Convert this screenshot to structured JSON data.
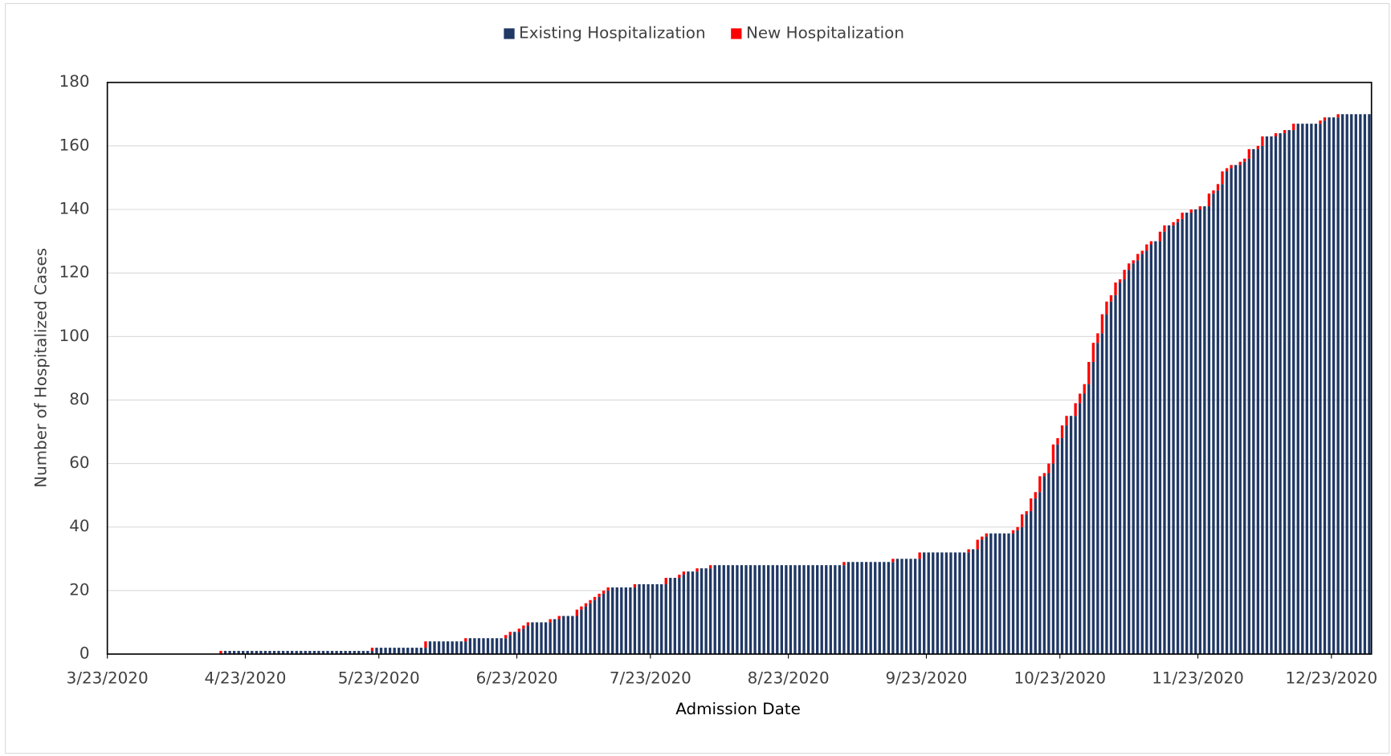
{
  "chart_data": {
    "type": "stacked_bar",
    "xlabel": "Admission Date",
    "ylabel": "Number of Hospitalized Cases",
    "legend": "top",
    "grid": true,
    "ylim": [
      0,
      180
    ],
    "yticks": [
      0,
      20,
      40,
      60,
      80,
      100,
      120,
      140,
      160,
      180
    ],
    "xticks": [
      "3/23/2020",
      "4/23/2020",
      "5/23/2020",
      "6/23/2020",
      "7/23/2020",
      "8/23/2020",
      "9/23/2020",
      "10/23/2020",
      "11/23/2020",
      "12/23/2020"
    ],
    "categories": [
      "3/23/2020",
      "3/24/2020",
      "3/25/2020",
      "3/26/2020",
      "3/27/2020",
      "3/28/2020",
      "3/29/2020",
      "3/30/2020",
      "3/31/2020",
      "4/1/2020",
      "4/2/2020",
      "4/3/2020",
      "4/4/2020",
      "4/5/2020",
      "4/6/2020",
      "4/7/2020",
      "4/8/2020",
      "4/9/2020",
      "4/10/2020",
      "4/11/2020",
      "4/12/2020",
      "4/13/2020",
      "4/14/2020",
      "4/15/2020",
      "4/16/2020",
      "4/17/2020",
      "4/18/2020",
      "4/19/2020",
      "4/20/2020",
      "4/21/2020",
      "4/22/2020",
      "4/23/2020",
      "4/24/2020",
      "4/25/2020",
      "4/26/2020",
      "4/27/2020",
      "4/28/2020",
      "4/29/2020",
      "4/30/2020",
      "5/1/2020",
      "5/2/2020",
      "5/3/2020",
      "5/4/2020",
      "5/5/2020",
      "5/6/2020",
      "5/7/2020",
      "5/8/2020",
      "5/9/2020",
      "5/10/2020",
      "5/11/2020",
      "5/12/2020",
      "5/13/2020",
      "5/14/2020",
      "5/15/2020",
      "5/16/2020",
      "5/17/2020",
      "5/18/2020",
      "5/19/2020",
      "5/20/2020",
      "5/21/2020",
      "5/22/2020",
      "5/23/2020",
      "5/24/2020",
      "5/25/2020",
      "5/26/2020",
      "5/27/2020",
      "5/28/2020",
      "5/29/2020",
      "5/30/2020",
      "5/31/2020",
      "6/1/2020",
      "6/2/2020",
      "6/3/2020",
      "6/4/2020",
      "6/5/2020",
      "6/6/2020",
      "6/7/2020",
      "6/8/2020",
      "6/9/2020",
      "6/10/2020",
      "6/11/2020",
      "6/12/2020",
      "6/13/2020",
      "6/14/2020",
      "6/15/2020",
      "6/16/2020",
      "6/17/2020",
      "6/18/2020",
      "6/19/2020",
      "6/20/2020",
      "6/21/2020",
      "6/22/2020",
      "6/23/2020",
      "6/24/2020",
      "6/25/2020",
      "6/26/2020",
      "6/27/2020",
      "6/28/2020",
      "6/29/2020",
      "6/30/2020",
      "7/1/2020",
      "7/2/2020",
      "7/3/2020",
      "7/4/2020",
      "7/5/2020",
      "7/6/2020",
      "7/7/2020",
      "7/8/2020",
      "7/9/2020",
      "7/10/2020",
      "7/11/2020",
      "7/12/2020",
      "7/13/2020",
      "7/14/2020",
      "7/15/2020",
      "7/16/2020",
      "7/17/2020",
      "7/18/2020",
      "7/19/2020",
      "7/20/2020",
      "7/21/2020",
      "7/22/2020",
      "7/23/2020",
      "7/24/2020",
      "7/25/2020",
      "7/26/2020",
      "7/27/2020",
      "7/28/2020",
      "7/29/2020",
      "7/30/2020",
      "7/31/2020",
      "8/1/2020",
      "8/2/2020",
      "8/3/2020",
      "8/4/2020",
      "8/5/2020",
      "8/6/2020",
      "8/7/2020",
      "8/8/2020",
      "8/9/2020",
      "8/10/2020",
      "8/11/2020",
      "8/12/2020",
      "8/13/2020",
      "8/14/2020",
      "8/15/2020",
      "8/16/2020",
      "8/17/2020",
      "8/18/2020",
      "8/19/2020",
      "8/20/2020",
      "8/21/2020",
      "8/22/2020",
      "8/23/2020",
      "8/24/2020",
      "8/25/2020",
      "8/26/2020",
      "8/27/2020",
      "8/28/2020",
      "8/29/2020",
      "8/30/2020",
      "8/31/2020",
      "9/1/2020",
      "9/2/2020",
      "9/3/2020",
      "9/4/2020",
      "9/5/2020",
      "9/6/2020",
      "9/7/2020",
      "9/8/2020",
      "9/9/2020",
      "9/10/2020",
      "9/11/2020",
      "9/12/2020",
      "9/13/2020",
      "9/14/2020",
      "9/15/2020",
      "9/16/2020",
      "9/17/2020",
      "9/18/2020",
      "9/19/2020",
      "9/20/2020",
      "9/21/2020",
      "9/22/2020",
      "9/23/2020",
      "9/24/2020",
      "9/25/2020",
      "9/26/2020",
      "9/27/2020",
      "9/28/2020",
      "9/29/2020",
      "9/30/2020",
      "10/1/2020",
      "10/2/2020",
      "10/3/2020",
      "10/4/2020",
      "10/5/2020",
      "10/6/2020",
      "10/7/2020",
      "10/8/2020",
      "10/9/2020",
      "10/10/2020",
      "10/11/2020",
      "10/12/2020",
      "10/13/2020",
      "10/14/2020",
      "10/15/2020",
      "10/16/2020",
      "10/17/2020",
      "10/18/2020",
      "10/19/2020",
      "10/20/2020",
      "10/21/2020",
      "10/22/2020",
      "10/23/2020",
      "10/24/2020",
      "10/25/2020",
      "10/26/2020",
      "10/27/2020",
      "10/28/2020",
      "10/29/2020",
      "10/30/2020",
      "10/31/2020",
      "11/1/2020",
      "11/2/2020",
      "11/3/2020",
      "11/4/2020",
      "11/5/2020",
      "11/6/2020",
      "11/7/2020",
      "11/8/2020",
      "11/9/2020",
      "11/10/2020",
      "11/11/2020",
      "11/12/2020",
      "11/13/2020",
      "11/14/2020",
      "11/15/2020",
      "11/16/2020",
      "11/17/2020",
      "11/18/2020",
      "11/19/2020",
      "11/20/2020",
      "11/21/2020",
      "11/22/2020",
      "11/23/2020",
      "11/24/2020",
      "11/25/2020",
      "11/26/2020",
      "11/27/2020",
      "11/28/2020",
      "11/29/2020",
      "11/30/2020",
      "12/1/2020",
      "12/2/2020",
      "12/3/2020",
      "12/4/2020",
      "12/5/2020",
      "12/6/2020",
      "12/7/2020",
      "12/8/2020",
      "12/9/2020",
      "12/10/2020",
      "12/11/2020",
      "12/12/2020",
      "12/13/2020",
      "12/14/2020",
      "12/15/2020",
      "12/16/2020",
      "12/17/2020",
      "12/18/2020",
      "12/19/2020",
      "12/20/2020",
      "12/21/2020",
      "12/22/2020",
      "12/23/2020",
      "12/24/2020",
      "12/25/2020",
      "12/26/2020",
      "12/27/2020",
      "12/28/2020",
      "12/29/2020",
      "12/30/2020",
      "12/31/2020"
    ],
    "series": [
      {
        "name": "Existing Hospitalization",
        "color": "#203864",
        "values": [
          0,
          0,
          0,
          0,
          0,
          0,
          0,
          0,
          0,
          0,
          0,
          0,
          0,
          0,
          0,
          0,
          0,
          0,
          0,
          0,
          0,
          0,
          0,
          0,
          0,
          0,
          1,
          1,
          1,
          1,
          1,
          1,
          1,
          1,
          1,
          1,
          1,
          1,
          1,
          1,
          1,
          1,
          1,
          1,
          1,
          1,
          1,
          1,
          1,
          1,
          1,
          1,
          1,
          1,
          1,
          1,
          1,
          1,
          1,
          1,
          2,
          2,
          2,
          2,
          2,
          2,
          2,
          2,
          2,
          2,
          2,
          2,
          4,
          4,
          4,
          4,
          4,
          4,
          4,
          4,
          4,
          5,
          5,
          5,
          5,
          5,
          5,
          5,
          5,
          5,
          6,
          7,
          7,
          8,
          9,
          10,
          10,
          10,
          10,
          10,
          11,
          11,
          12,
          12,
          12,
          12,
          14,
          15,
          16,
          17,
          18,
          19,
          20,
          21,
          21,
          21,
          21,
          21,
          21,
          22,
          22,
          22,
          22,
          22,
          22,
          22,
          24,
          24,
          24,
          25,
          26,
          26,
          26,
          27,
          27,
          27,
          28,
          28,
          28,
          28,
          28,
          28,
          28,
          28,
          28,
          28,
          28,
          28,
          28,
          28,
          28,
          28,
          28,
          28,
          28,
          28,
          28,
          28,
          28,
          28,
          28,
          28,
          28,
          28,
          28,
          28,
          29,
          29,
          29,
          29,
          29,
          29,
          29,
          29,
          29,
          29,
          29,
          30,
          30,
          30,
          30,
          30,
          30,
          32,
          32,
          32,
          32,
          32,
          32,
          32,
          32,
          32,
          32,
          32,
          33,
          33,
          36,
          37,
          38,
          38,
          38,
          38,
          38,
          38,
          39,
          40,
          44,
          45,
          49,
          51,
          56,
          57,
          60,
          66,
          68,
          72,
          75,
          75,
          79,
          82,
          85,
          92,
          98,
          101,
          107,
          111,
          113,
          117,
          118,
          121,
          123,
          124,
          126,
          127,
          129,
          130,
          130,
          133,
          135,
          135,
          136,
          137,
          139,
          139,
          140,
          140,
          141,
          141,
          145,
          146,
          148,
          152,
          153,
          154,
          154,
          155,
          156,
          159,
          159,
          160,
          163,
          163,
          163,
          164,
          164,
          165,
          165,
          167,
          167,
          167,
          167,
          167,
          167,
          168,
          169,
          169,
          169,
          170,
          170,
          170,
          170,
          170,
          170,
          170
        ]
      },
      {
        "name": "New Hospitalization",
        "color": "#ff0000",
        "values": [
          0,
          0,
          0,
          0,
          0,
          0,
          0,
          0,
          0,
          0,
          0,
          0,
          0,
          0,
          0,
          0,
          0,
          0,
          0,
          0,
          0,
          0,
          0,
          0,
          0,
          1,
          0,
          0,
          0,
          0,
          0,
          0,
          0,
          0,
          0,
          0,
          0,
          0,
          0,
          0,
          0,
          0,
          0,
          0,
          0,
          0,
          0,
          0,
          0,
          0,
          0,
          0,
          0,
          0,
          0,
          0,
          0,
          0,
          0,
          1,
          0,
          0,
          0,
          0,
          0,
          0,
          0,
          0,
          0,
          0,
          0,
          2,
          0,
          0,
          0,
          0,
          0,
          0,
          0,
          0,
          1,
          0,
          0,
          0,
          0,
          0,
          0,
          0,
          0,
          1,
          1,
          0,
          1,
          1,
          1,
          0,
          0,
          0,
          0,
          1,
          0,
          1,
          0,
          0,
          0,
          2,
          1,
          1,
          1,
          1,
          1,
          1,
          1,
          0,
          0,
          0,
          0,
          0,
          1,
          0,
          0,
          0,
          0,
          0,
          0,
          2,
          0,
          0,
          1,
          1,
          0,
          0,
          1,
          0,
          0,
          1,
          0,
          0,
          0,
          0,
          0,
          0,
          0,
          0,
          0,
          0,
          0,
          0,
          0,
          0,
          0,
          0,
          0,
          0,
          0,
          0,
          0,
          0,
          0,
          0,
          0,
          0,
          0,
          0,
          0,
          1,
          0,
          0,
          0,
          0,
          0,
          0,
          0,
          0,
          0,
          0,
          1,
          0,
          0,
          0,
          0,
          0,
          2,
          0,
          0,
          0,
          0,
          0,
          0,
          0,
          0,
          0,
          0,
          1,
          0,
          3,
          1,
          1,
          0,
          0,
          0,
          0,
          0,
          1,
          1,
          4,
          1,
          4,
          2,
          5,
          1,
          3,
          6,
          2,
          4,
          3,
          0,
          4,
          3,
          3,
          7,
          6,
          3,
          6,
          4,
          2,
          4,
          1,
          3,
          2,
          1,
          2,
          1,
          2,
          1,
          0,
          3,
          2,
          0,
          1,
          1,
          2,
          0,
          1,
          0,
          1,
          0,
          4,
          1,
          2,
          4,
          1,
          1,
          0,
          1,
          1,
          3,
          0,
          1,
          3,
          0,
          0,
          1,
          0,
          1,
          0,
          2,
          0,
          0,
          0,
          0,
          0,
          1,
          1,
          0,
          0,
          1,
          0,
          0,
          0,
          0,
          0,
          0,
          0
        ]
      }
    ]
  }
}
